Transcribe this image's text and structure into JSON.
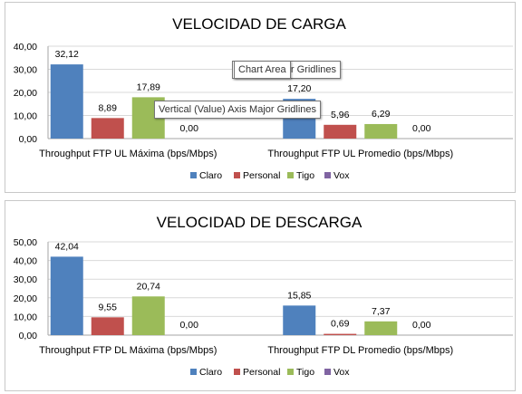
{
  "chart_data": [
    {
      "type": "bar",
      "title": "VELOCIDAD DE CARGA",
      "categories": [
        "Throughput FTP UL Máxima (bps/Mbps)",
        "Throughput FTP UL Promedio (bps/Mbps)"
      ],
      "series": [
        {
          "name": "Claro",
          "color": "#4f81bd",
          "values": [
            32.12,
            17.2
          ],
          "labels": [
            "32,12",
            "17,20"
          ]
        },
        {
          "name": "Personal",
          "color": "#c0504d",
          "values": [
            8.89,
            5.96
          ],
          "labels": [
            "8,89",
            "5,96"
          ]
        },
        {
          "name": "Tigo",
          "color": "#9bbb59",
          "values": [
            17.89,
            6.29
          ],
          "labels": [
            "17,89",
            "6,29"
          ]
        },
        {
          "name": "Vox",
          "color": "#8064a2",
          "values": [
            0.0,
            0.0
          ],
          "labels": [
            "0,00",
            "0,00"
          ]
        }
      ],
      "ylim": [
        0,
        40
      ],
      "yticks": [
        "0,00",
        "10,00",
        "20,00",
        "30,00",
        "40,00"
      ],
      "grid": true,
      "legend_position": "bottom",
      "xlabel": "",
      "ylabel": ""
    },
    {
      "type": "bar",
      "title": "VELOCIDAD DE DESCARGA",
      "categories": [
        "Throughput FTP DL Máxima (bps/Mbps)",
        "Throughput FTP DL Promedio (bps/Mbps)"
      ],
      "series": [
        {
          "name": "Claro",
          "color": "#4f81bd",
          "values": [
            42.04,
            15.85
          ],
          "labels": [
            "42,04",
            "15,85"
          ]
        },
        {
          "name": "Personal",
          "color": "#c0504d",
          "values": [
            9.55,
            0.69
          ],
          "labels": [
            "9,55",
            "0,69"
          ]
        },
        {
          "name": "Tigo",
          "color": "#9bbb59",
          "values": [
            20.74,
            7.37
          ],
          "labels": [
            "20,74",
            "7,37"
          ]
        },
        {
          "name": "Vox",
          "color": "#8064a2",
          "values": [
            0.0,
            0.0
          ],
          "labels": [
            "0,00",
            "0,00"
          ]
        }
      ],
      "ylim": [
        0,
        50
      ],
      "yticks": [
        "0,00",
        "10,00",
        "20,00",
        "30,00",
        "40,00",
        "50,00"
      ],
      "grid": true,
      "legend_position": "bottom",
      "xlabel": "",
      "ylabel": ""
    }
  ],
  "tooltips": {
    "chart_area": "Chart Area",
    "horizontal_gridlines": "e) Axis Major Gridlines",
    "vertical_gridlines": "Vertical (Value) Axis Major Gridlines"
  }
}
